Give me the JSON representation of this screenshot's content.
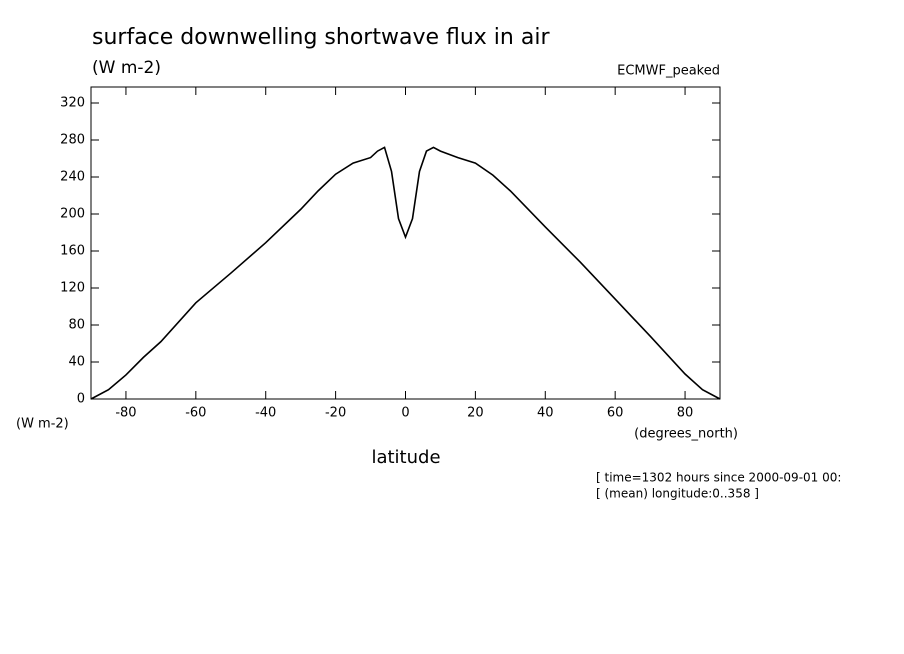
{
  "chart_data": {
    "type": "line",
    "title": "surface downwelling shortwave flux in air",
    "subtitle": "(W m-2)",
    "dataset": "ECMWF_peaked",
    "y_label": "(W m-2)",
    "x_units": "(degrees_north)",
    "x_label": "latitude",
    "notes": [
      "[ time=1302 hours since 2000-09-01 00:",
      "[ (mean) longitude:0..358 ]"
    ],
    "x": [
      -90,
      -85,
      -80,
      -75,
      -70,
      -60,
      -50,
      -40,
      -30,
      -25,
      -20,
      -15,
      -10,
      -8,
      -6,
      -4,
      -2,
      0,
      2,
      4,
      6,
      8,
      10,
      15,
      20,
      25,
      30,
      40,
      50,
      60,
      70,
      80,
      85,
      90
    ],
    "series": [
      {
        "name": "ECMWF_peaked",
        "color": "#000000",
        "values": [
          0,
          10,
          26,
          45,
          62,
          104,
          136,
          169,
          205,
          225,
          243,
          255,
          261,
          268,
          272,
          246,
          195,
          175,
          195,
          246,
          268,
          272,
          268,
          261,
          255,
          242,
          225,
          186,
          148,
          108,
          68,
          27,
          10,
          0
        ]
      }
    ],
    "xlim": [
      -90,
      90
    ],
    "ylim": [
      0,
      320
    ],
    "xticks": [
      -80,
      -60,
      -40,
      -20,
      0,
      20,
      40,
      60,
      80
    ],
    "yticks": [
      0,
      40,
      80,
      120,
      160,
      200,
      240,
      280,
      320
    ],
    "grid": false
  }
}
